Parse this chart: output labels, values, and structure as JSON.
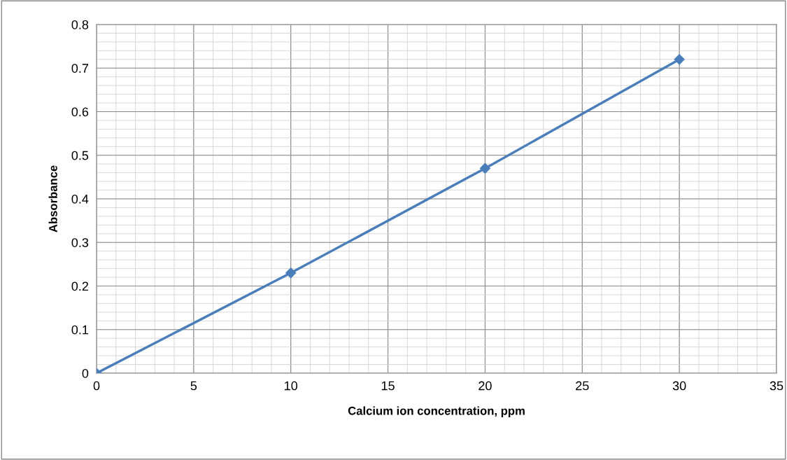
{
  "chart_data": {
    "type": "line",
    "xlabel": "Calcium ion concentration, ppm",
    "ylabel": "Absorbance",
    "x": [
      0,
      10,
      20,
      30
    ],
    "series": [
      {
        "color": "#4a7ebb",
        "values": [
          0,
          0.23,
          0.47,
          0.72
        ]
      }
    ],
    "xlim": [
      0,
      35
    ],
    "xticks": [
      0,
      5,
      10,
      15,
      20,
      25,
      30,
      35
    ],
    "ylim": [
      0,
      0.8
    ],
    "yticks": [
      0,
      0.1,
      0.2,
      0.3,
      0.4,
      0.5,
      0.6,
      0.7,
      0.8
    ],
    "grid": true,
    "marker": "diamond",
    "line_style": "solid",
    "legend": false
  }
}
